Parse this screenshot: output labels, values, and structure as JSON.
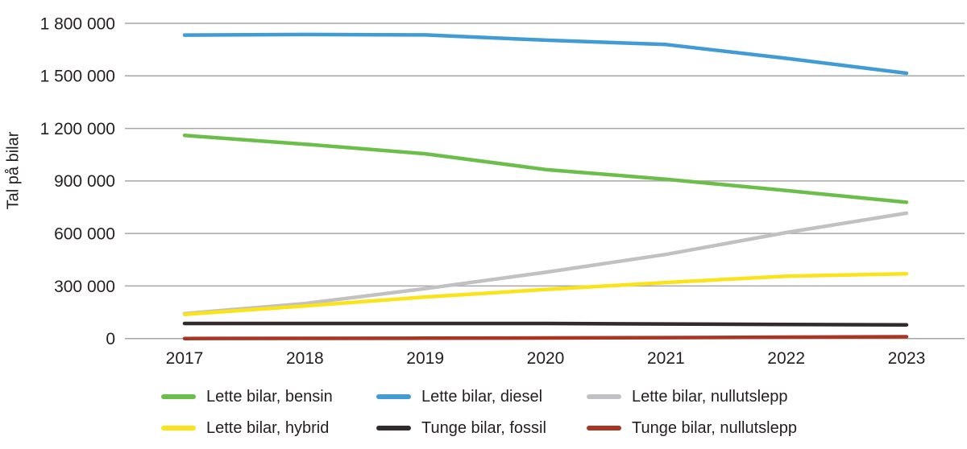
{
  "chart_data": {
    "type": "line",
    "title": "",
    "ylabel": "Tal på bilar",
    "xlabel": "",
    "x": [
      2017,
      2018,
      2019,
      2020,
      2021,
      2022,
      2023
    ],
    "x_labels": [
      "2017",
      "2018",
      "2019",
      "2020",
      "2021",
      "2022",
      "2023"
    ],
    "ylim": [
      0,
      1800000
    ],
    "yticks": [
      {
        "value": 1800000,
        "label": "1 800 000"
      },
      {
        "value": 1500000,
        "label": "1 500 000"
      },
      {
        "value": 1200000,
        "label": "1 200 000"
      },
      {
        "value": 900000,
        "label": "900 000"
      },
      {
        "value": 600000,
        "label": "600 000"
      },
      {
        "value": 300000,
        "label": "300 000"
      },
      {
        "value": 0,
        "label": "0"
      }
    ],
    "grid": true,
    "legend_position": "bottom",
    "series": [
      {
        "name": "Lette bilar, bensin",
        "color": "#6CBE4B",
        "values": [
          1160000,
          1110000,
          1055000,
          965000,
          910000,
          845000,
          778000
        ]
      },
      {
        "name": "Lette bilar, diesel",
        "color": "#419BD5",
        "values": [
          1733000,
          1736000,
          1734000,
          1704000,
          1679000,
          1600000,
          1515000
        ]
      },
      {
        "name": "Lette bilar, nullutslepp",
        "color": "#C1C1C3",
        "values": [
          142000,
          200000,
          285000,
          378000,
          480000,
          605000,
          716000
        ]
      },
      {
        "name": "Lette bilar, hybrid",
        "color": "#FBE319",
        "values": [
          138000,
          186000,
          237000,
          280000,
          320000,
          356000,
          370000
        ]
      },
      {
        "name": "Tunge bilar, fossil",
        "color": "#332A2D",
        "values": [
          86000,
          86000,
          86000,
          86000,
          83000,
          80000,
          78000
        ]
      },
      {
        "name": "Tunge bilar, nullutslepp",
        "color": "#A93523",
        "values": [
          0,
          1000,
          2000,
          3000,
          5000,
          8000,
          10000
        ]
      }
    ],
    "colors": {
      "grid": "#A6A6A6",
      "text": "#231F20"
    }
  }
}
